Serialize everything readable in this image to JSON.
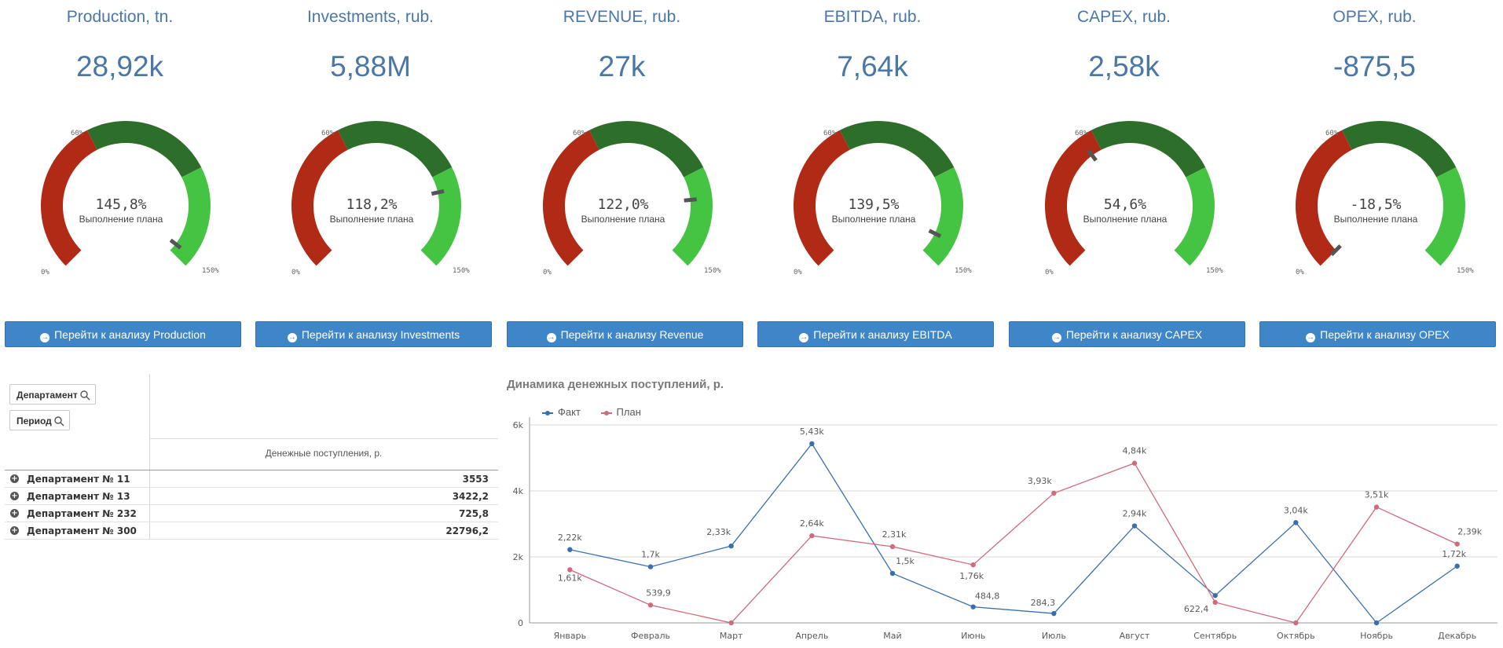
{
  "kpis": [
    {
      "title": "Production, tn.",
      "value": "28,92k",
      "pct_label": "145,8%",
      "sub": "Выполнение плана",
      "pct": 145.8,
      "button": "Перейти к анализу Production"
    },
    {
      "title": "Investments, rub.",
      "value": "5,88M",
      "pct_label": "118,2%",
      "sub": "Выполнение плана",
      "pct": 118.2,
      "button": "Перейти к анализу Investments"
    },
    {
      "title": "REVENUE, rub.",
      "value": "27k",
      "pct_label": "122,0%",
      "sub": "Выполнение плана",
      "pct": 122.0,
      "button": "Перейти к анализу Revenue"
    },
    {
      "title": "EBITDA, rub.",
      "value": "7,64k",
      "pct_label": "139,5%",
      "sub": "Выполнение плана",
      "pct": 139.5,
      "button": "Перейти к анализу EBITDA"
    },
    {
      "title": "CAPEX, rub.",
      "value": "2,58k",
      "pct_label": "54,6%",
      "sub": "Выполнение плана",
      "pct": 54.6,
      "button": "Перейти к анализу CAPEX"
    },
    {
      "title": "OPEX, rub.",
      "value": "-875,5",
      "pct_label": "-18,5%",
      "sub": "Выполнение плана",
      "pct": -18.5,
      "button": "Перейти к анализу OPEX"
    }
  ],
  "gauge_scale": {
    "min_label": "0%",
    "mid_label": "60%",
    "max_label": "150%",
    "min": 0,
    "max": 150,
    "bands": [
      60,
      110,
      150
    ]
  },
  "colors": {
    "accent": "#4a77a8",
    "button": "#3f86c9",
    "band_low": "#b02a15",
    "band_mid": "#2e6e2b",
    "band_high": "#45c444",
    "fact": "#3a6fae",
    "plan": "#d06b7b"
  },
  "filters": {
    "department": "Департамент",
    "period": "Период"
  },
  "table": {
    "column_header": "Денежные поступления, р.",
    "rows": [
      {
        "name": "Департамент № 11",
        "value": "3553"
      },
      {
        "name": "Департамент № 13",
        "value": "3422,2"
      },
      {
        "name": "Департамент № 232",
        "value": "725,8"
      },
      {
        "name": "Департамент № 300",
        "value": "22796,2"
      }
    ]
  },
  "chart_data": {
    "type": "line",
    "title": "Динамика денежных поступлений, р.",
    "categories": [
      "Январь",
      "Февраль",
      "Март",
      "Апрель",
      "Май",
      "Июнь",
      "Июль",
      "Август",
      "Сентябрь",
      "Октябрь",
      "Ноябрь",
      "Декабрь"
    ],
    "series": [
      {
        "name": "Факт",
        "values": [
          2220,
          1700,
          2330,
          5430,
          1500,
          484.8,
          284.3,
          2940,
          830,
          3040,
          0,
          1720
        ],
        "labels": [
          "2,22k",
          "1,7k",
          "2,33k",
          "5,43k",
          "1,5k",
          "484,8",
          "284,3",
          "2,94k",
          "",
          "3,04k",
          "",
          "1,72k"
        ]
      },
      {
        "name": "План",
        "values": [
          1610,
          539.9,
          0,
          2640,
          2310,
          1760,
          3930,
          4840,
          622.4,
          0,
          3510,
          2390
        ],
        "labels": [
          "1,61k",
          "539,9",
          "",
          "2,64k",
          "2,31k",
          "1,76k",
          "3,93k",
          "4,84k",
          "622,4",
          "",
          "3,51k",
          "2,39k"
        ]
      }
    ],
    "yticks": [
      "0",
      "2k",
      "4k",
      "6k"
    ],
    "ylim": [
      0,
      6000
    ],
    "grid": true,
    "legend": "top-left"
  }
}
